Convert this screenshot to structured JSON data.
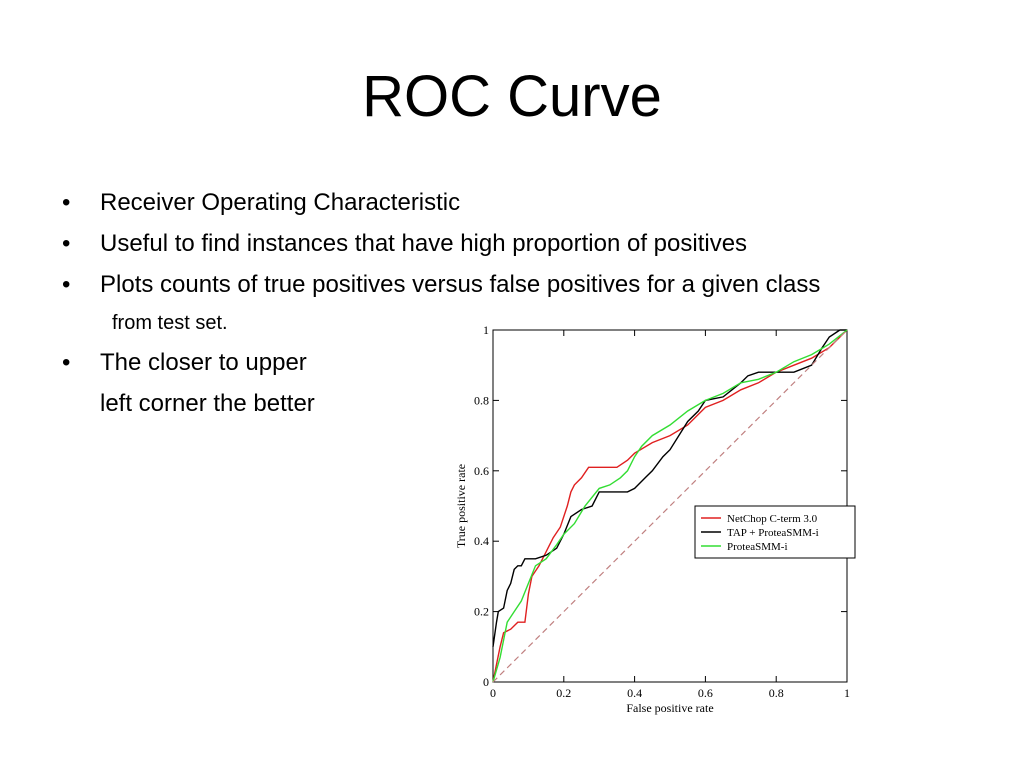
{
  "slide": {
    "title": "ROC Curve",
    "bullet_char": "•",
    "bullets": [
      {
        "text": "Receiver Operating Characteristic"
      },
      {
        "text": "Useful to find instances that have high proportion of positives"
      },
      {
        "text": "Plots counts of true positives versus false positives for a given class",
        "continuation": "from test set."
      },
      {
        "text": "The closer to upper",
        "continuation": "left corner the better"
      }
    ]
  },
  "chart_data": {
    "type": "line",
    "title": "",
    "xlabel": "False positive rate",
    "ylabel": "True positive rate",
    "xlim": [
      0,
      1
    ],
    "ylim": [
      0,
      1
    ],
    "x_ticks": [
      "0",
      "0.2",
      "0.4",
      "0.6",
      "0.8",
      "1"
    ],
    "y_ticks": [
      "0",
      "0.2",
      "0.4",
      "0.6",
      "0.8",
      "1"
    ],
    "grid": false,
    "legend_position": "right-middle",
    "series": [
      {
        "name": "NetChop C-term 3.0",
        "color": "#e02020",
        "x": [
          0,
          0.01,
          0.02,
          0.03,
          0.05,
          0.07,
          0.09,
          0.1,
          0.11,
          0.13,
          0.15,
          0.17,
          0.19,
          0.21,
          0.22,
          0.23,
          0.25,
          0.27,
          0.3,
          0.35,
          0.38,
          0.4,
          0.45,
          0.5,
          0.55,
          0.6,
          0.65,
          0.7,
          0.75,
          0.8,
          0.85,
          0.9,
          0.95,
          1
        ],
        "y": [
          0,
          0.05,
          0.1,
          0.14,
          0.15,
          0.17,
          0.17,
          0.25,
          0.3,
          0.33,
          0.37,
          0.41,
          0.44,
          0.5,
          0.54,
          0.56,
          0.58,
          0.61,
          0.61,
          0.61,
          0.63,
          0.65,
          0.68,
          0.7,
          0.73,
          0.78,
          0.8,
          0.83,
          0.85,
          0.88,
          0.9,
          0.92,
          0.95,
          1
        ]
      },
      {
        "name": "TAP + ProteaSMM-i",
        "color": "#000000",
        "x": [
          0,
          0.01,
          0.015,
          0.03,
          0.04,
          0.05,
          0.06,
          0.07,
          0.08,
          0.09,
          0.12,
          0.15,
          0.18,
          0.2,
          0.22,
          0.25,
          0.28,
          0.3,
          0.33,
          0.38,
          0.4,
          0.43,
          0.45,
          0.48,
          0.5,
          0.55,
          0.58,
          0.6,
          0.65,
          0.7,
          0.72,
          0.75,
          0.8,
          0.85,
          0.9,
          0.93,
          0.95,
          0.98,
          1
        ],
        "y": [
          0.1,
          0.17,
          0.2,
          0.21,
          0.26,
          0.28,
          0.32,
          0.33,
          0.33,
          0.35,
          0.35,
          0.36,
          0.38,
          0.42,
          0.47,
          0.49,
          0.5,
          0.54,
          0.54,
          0.54,
          0.55,
          0.58,
          0.6,
          0.64,
          0.66,
          0.74,
          0.77,
          0.8,
          0.81,
          0.85,
          0.87,
          0.88,
          0.88,
          0.88,
          0.9,
          0.95,
          0.98,
          1,
          1
        ]
      },
      {
        "name": "ProteaSMM-i",
        "color": "#33dd33",
        "x": [
          0,
          0.02,
          0.04,
          0.06,
          0.08,
          0.1,
          0.12,
          0.15,
          0.18,
          0.2,
          0.23,
          0.26,
          0.3,
          0.33,
          0.36,
          0.38,
          0.4,
          0.42,
          0.45,
          0.5,
          0.55,
          0.6,
          0.65,
          0.7,
          0.75,
          0.8,
          0.85,
          0.9,
          0.95,
          1
        ],
        "y": [
          0,
          0.07,
          0.17,
          0.2,
          0.23,
          0.28,
          0.33,
          0.35,
          0.39,
          0.42,
          0.45,
          0.5,
          0.55,
          0.56,
          0.58,
          0.6,
          0.64,
          0.67,
          0.7,
          0.73,
          0.77,
          0.8,
          0.82,
          0.85,
          0.86,
          0.88,
          0.91,
          0.93,
          0.96,
          1
        ]
      },
      {
        "name": "",
        "color": "#c08080",
        "dashed": true,
        "x": [
          0,
          1
        ],
        "y": [
          0,
          1
        ]
      }
    ]
  }
}
